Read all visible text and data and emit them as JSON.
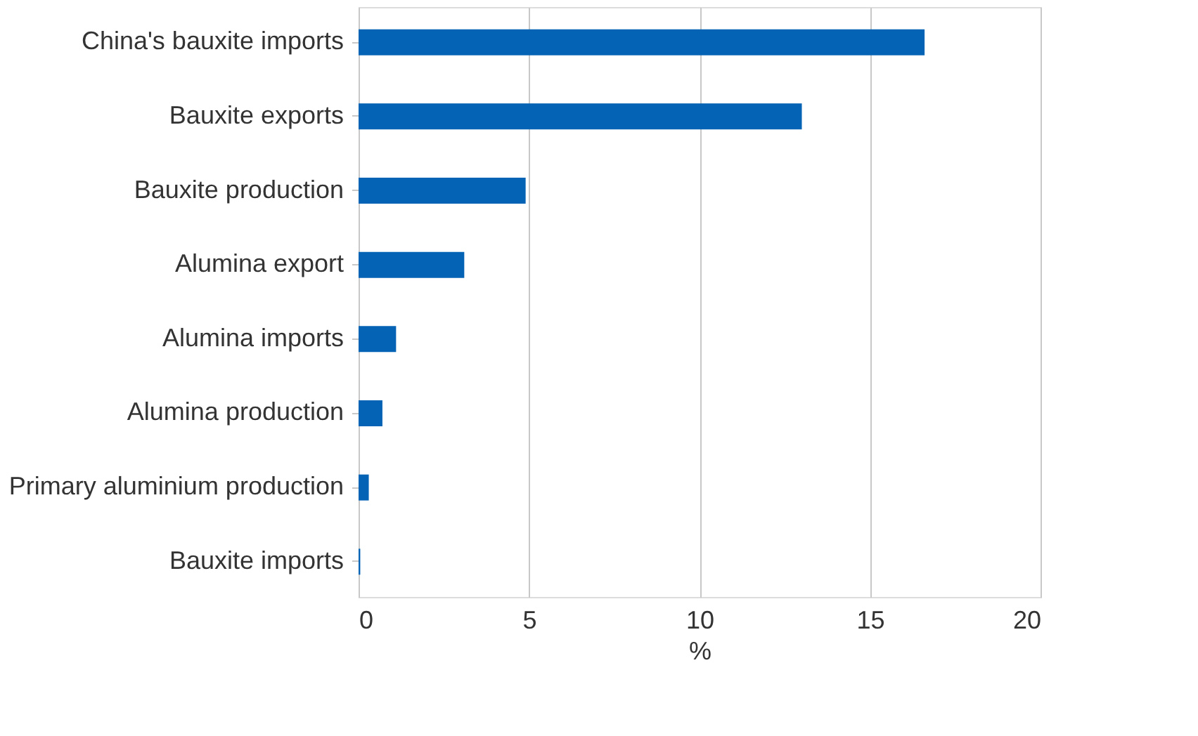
{
  "chart_data": {
    "type": "bar",
    "orientation": "horizontal",
    "xlabel": "%",
    "categories": [
      "China's bauxite imports",
      "Bauxite exports",
      "Bauxite production",
      "Alumina export",
      "Alumina imports",
      "Alumina production",
      "Primary aluminium production",
      "Bauxite imports"
    ],
    "values": [
      16.6,
      13.0,
      4.9,
      3.1,
      1.1,
      0.7,
      0.3,
      0.05
    ],
    "color": "#0563b5",
    "xlim": [
      0,
      20
    ],
    "xticks": [
      0,
      5,
      10,
      15,
      20
    ],
    "grid": "x"
  }
}
